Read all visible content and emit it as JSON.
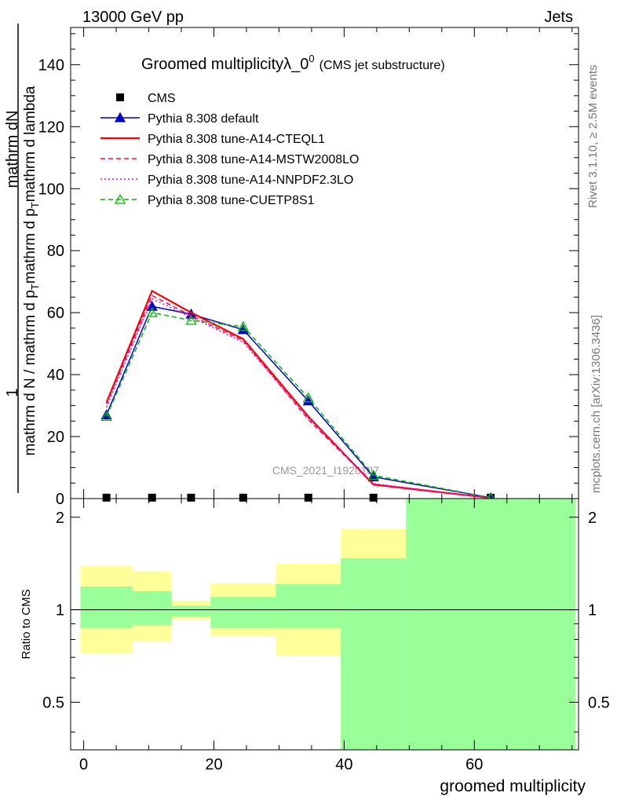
{
  "header": {
    "energy_label": "13000 GeV pp",
    "category_label": "Jets"
  },
  "side_labels": {
    "rivet": "Rivet 3.1.10, ≥ 2.5M events",
    "mcplots": "mcplots.cern.ch [arXiv:1306.3436]"
  },
  "chart_data": [
    {
      "type": "line",
      "title": "Groomed multiplicityλ_0",
      "title_superscript": "0",
      "subtitle": "(CMS jet substructure)",
      "watermark": "CMS_2021_I1920187",
      "ylabel_numerator": "mathrm dN",
      "ylabel_one": "1",
      "ylabel_line1": "mathrm d N / mathrm d p",
      "ylabel_line1_sub": "T",
      "ylabel_line1_rest": "mathrm d p",
      "ylabel_line1_sub2": "T",
      "ylabel_line1_tail": "mathrm d lambda",
      "xlim": [
        -2,
        76
      ],
      "ylim": [
        0,
        152
      ],
      "yticks": [
        20,
        40,
        60,
        80,
        100,
        120,
        140
      ],
      "x": [
        3.5,
        10.5,
        16.5,
        24.5,
        34.5,
        44.5,
        62.5
      ],
      "series": [
        {
          "name": "CMS",
          "color": "#000000",
          "style": "data",
          "marker": "square",
          "values": [
            0.3,
            0.3,
            0.3,
            0.3,
            0.3,
            0.3,
            0.3
          ]
        },
        {
          "name": "Pythia 8.308 default",
          "color": "#0000cc",
          "style": "solid",
          "marker": "triangle",
          "values": [
            27,
            62,
            59.5,
            54.5,
            31.5,
            7,
            0.3
          ]
        },
        {
          "name": "Pythia 8.308 tune-A14-CTEQL1",
          "color": "#ff0000",
          "style": "solid",
          "marker": "none",
          "values": [
            31,
            67,
            60,
            51.5,
            26.5,
            4.5,
            0.2
          ]
        },
        {
          "name": "Pythia 8.308 tune-A14-MSTW2008LO",
          "color": "#ff0066",
          "style": "dashed",
          "marker": "none",
          "values": [
            30.5,
            65.5,
            59,
            51,
            25.5,
            4.7,
            0.2
          ]
        },
        {
          "name": "Pythia 8.308 tune-A14-NNPDF2.3LO",
          "color": "#ee00cc",
          "style": "dotted",
          "marker": "none",
          "values": [
            29.5,
            64.5,
            58.5,
            50.5,
            26,
            4.8,
            0.2
          ]
        },
        {
          "name": "Pythia 8.308 tune-CUETP8S1",
          "color": "#00bb00",
          "style": "dashed",
          "marker": "open-triangle",
          "values": [
            26.5,
            60,
            57.5,
            55.5,
            32.5,
            7.5,
            0.3
          ]
        }
      ]
    },
    {
      "type": "area",
      "ylabel": "Ratio to CMS",
      "xlabel": "groomed multiplicity",
      "xlim": [
        -2,
        76
      ],
      "ylim": [
        0.35,
        2.3
      ],
      "log_y": true,
      "yticks": [
        0.5,
        1,
        2
      ],
      "xticks": [
        0,
        20,
        40,
        60
      ],
      "reference_line": 1,
      "bins": [
        {
          "lo": -0.5,
          "hi": 7.5,
          "inner": [
            0.87,
            1.19
          ],
          "outer": [
            0.72,
            1.39
          ]
        },
        {
          "lo": 7.5,
          "hi": 13.5,
          "inner": [
            0.89,
            1.15
          ],
          "outer": [
            0.79,
            1.33
          ]
        },
        {
          "lo": 13.5,
          "hi": 19.5,
          "inner": [
            0.95,
            1.03
          ],
          "outer": [
            0.93,
            1.07
          ]
        },
        {
          "lo": 19.5,
          "hi": 29.5,
          "inner": [
            0.87,
            1.1
          ],
          "outer": [
            0.82,
            1.22
          ]
        },
        {
          "lo": 29.5,
          "hi": 39.5,
          "inner": [
            0.87,
            1.21
          ],
          "outer": [
            0.71,
            1.41
          ]
        },
        {
          "lo": 39.5,
          "hi": 49.5,
          "inner": [
            0.35,
            1.47
          ],
          "outer": [
            0.35,
            1.83
          ]
        },
        {
          "lo": 49.5,
          "hi": 75.5,
          "inner": [
            0.35,
            2.3
          ],
          "outer": [
            0.35,
            2.3
          ]
        }
      ],
      "band_colors": {
        "inner": "#99ff99",
        "outer": "#ffff99"
      }
    }
  ]
}
